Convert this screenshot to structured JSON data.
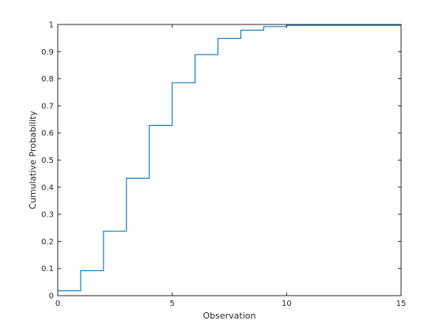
{
  "chart_data": {
    "type": "line",
    "step": "post",
    "xlabel": "Observation",
    "ylabel": "Cumulative Probability",
    "xlim": [
      0,
      15
    ],
    "ylim": [
      0,
      1
    ],
    "grid": false,
    "xticks": [
      0,
      5,
      10,
      15
    ],
    "yticks": [
      0,
      0.1,
      0.2,
      0.3,
      0.4,
      0.5,
      0.6,
      0.7,
      0.8,
      0.9,
      1
    ],
    "xtick_labels": [
      "0",
      "5",
      "10",
      "15"
    ],
    "ytick_labels": [
      "0",
      "0.1",
      "0.2",
      "0.3",
      "0.4",
      "0.5",
      "0.6",
      "0.7",
      "0.8",
      "0.9",
      "1"
    ],
    "series": [
      {
        "color": "#0072BD",
        "x": [
          0,
          1,
          2,
          3,
          4,
          5,
          6,
          7,
          8,
          9,
          10,
          15
        ],
        "y": [
          0.018,
          0.092,
          0.238,
          0.433,
          0.628,
          0.785,
          0.889,
          0.949,
          0.979,
          0.992,
          0.997,
          1.0
        ]
      }
    ]
  }
}
